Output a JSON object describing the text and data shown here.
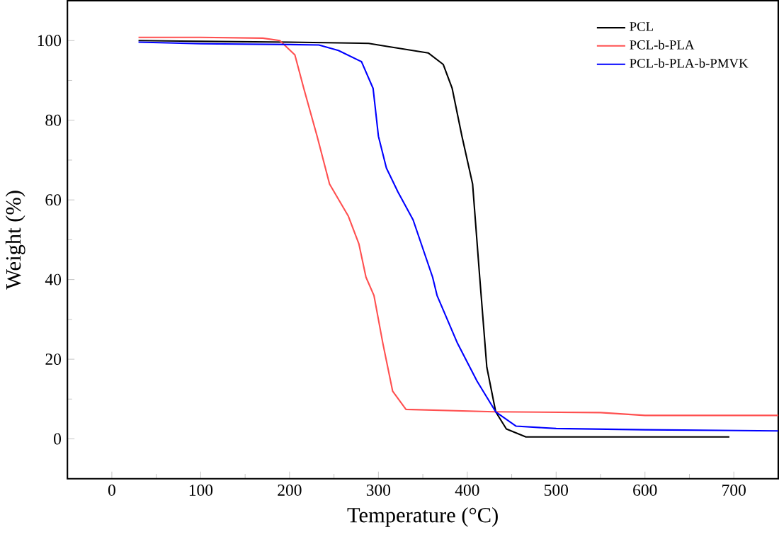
{
  "chart_data": {
    "type": "line",
    "xlabel": "Temperature (°C)",
    "ylabel": "Weight (%)",
    "xlim": [
      -50,
      750
    ],
    "ylim": [
      -10,
      110
    ],
    "xticks": [
      0,
      100,
      200,
      300,
      400,
      500,
      600,
      700
    ],
    "yticks": [
      0,
      20,
      40,
      60,
      80,
      100
    ],
    "grid": false,
    "legend": "top right",
    "marker": "none",
    "line_style": "solid",
    "series": [
      {
        "name": "PCL",
        "color": "#000000",
        "x": [
          30,
          100,
          200,
          289,
          311,
          356,
          373,
          383,
          394,
          406,
          414,
          422,
          432,
          444,
          466,
          550,
          695
        ],
        "values": [
          100,
          99.8,
          99.6,
          99.3,
          98.5,
          96.9,
          94,
          88,
          76,
          64,
          40.6,
          18,
          6.8,
          2.5,
          0.5,
          0.5,
          0.5
        ]
      },
      {
        "name": "PCL-b-PLA",
        "color": "#ff5050",
        "x": [
          30,
          100,
          170,
          189,
          206,
          216,
          231,
          245,
          266,
          278,
          286,
          295,
          305,
          316,
          331,
          430,
          550,
          600,
          750
        ],
        "values": [
          100.8,
          100.8,
          100.6,
          100,
          96.4,
          88,
          76,
          64,
          56,
          49,
          40.6,
          36,
          24,
          12,
          7.4,
          6.8,
          6.6,
          5.9,
          5.9
        ]
      },
      {
        "name": "PCL-b-PLA-b-PMVK",
        "color": "#0000ff",
        "x": [
          30,
          100,
          200,
          233,
          255,
          281,
          294,
          300,
          309,
          322,
          339,
          361,
          366,
          389,
          411,
          432,
          455,
          500,
          600,
          750
        ],
        "values": [
          99.6,
          99.2,
          99,
          98.9,
          97.5,
          94.7,
          88,
          76,
          68,
          62,
          55,
          40.6,
          36,
          24,
          14.5,
          6.8,
          3.2,
          2.6,
          2.3,
          2.0
        ]
      }
    ]
  }
}
